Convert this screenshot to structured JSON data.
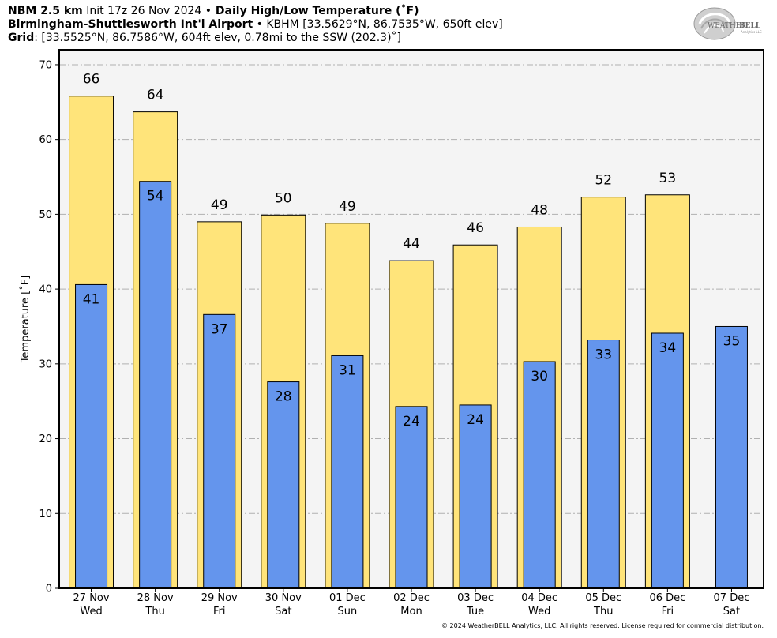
{
  "header": {
    "model": "NBM 2.5 km",
    "init": " Init 17z 26 Nov 2024 ",
    "bullet": "•",
    "product": " Daily High/Low Temperature (˚F)",
    "station_name": "Birmingham-Shuttlesworth Int'l Airport",
    "station_info": " KBHM [33.5629°N, 86.7535°W, 650ft elev]",
    "grid_label": "Grid",
    "grid_info": ": [33.5525°N, 86.7586°W, 604ft elev, 0.78mi to the SSW (202.3)˚]"
  },
  "logo": {
    "text_main": "WEATHER",
    "text_brand": "BELL",
    "text_sub": "Analytics LLC"
  },
  "copyright": "© 2024 WeatherBELL Analytics, LLC. All rights reserved. License required for commercial distribution.",
  "chart_data": {
    "type": "bar",
    "ylabel": "Temperature [˚F]",
    "ylim": [
      0,
      72
    ],
    "yticks": [
      0,
      10,
      20,
      30,
      40,
      50,
      60,
      70
    ],
    "grid": true,
    "categories": [
      "27 Nov",
      "28 Nov",
      "29 Nov",
      "30 Nov",
      "01 Dec",
      "02 Dec",
      "03 Dec",
      "04 Dec",
      "05 Dec",
      "06 Dec",
      "07 Dec"
    ],
    "weekdays": [
      "Wed",
      "Thu",
      "Fri",
      "Sat",
      "Sun",
      "Mon",
      "Tue",
      "Wed",
      "Thu",
      "Fri",
      "Sat"
    ],
    "series": [
      {
        "key": "high",
        "color": "#ffe47a",
        "values": [
          65.8,
          63.7,
          49.0,
          49.9,
          48.8,
          43.8,
          45.9,
          48.3,
          52.3,
          52.6,
          null
        ],
        "labels": [
          "66",
          "64",
          "49",
          "50",
          "49",
          "44",
          "46",
          "48",
          "52",
          "53",
          ""
        ]
      },
      {
        "key": "low",
        "color": "#6495ed",
        "values": [
          40.6,
          54.4,
          36.6,
          27.6,
          31.1,
          24.3,
          24.5,
          30.3,
          33.2,
          34.1,
          35.0
        ],
        "labels": [
          "41",
          "54",
          "37",
          "28",
          "31",
          "24",
          "24",
          "30",
          "33",
          "34",
          "35"
        ]
      }
    ]
  }
}
